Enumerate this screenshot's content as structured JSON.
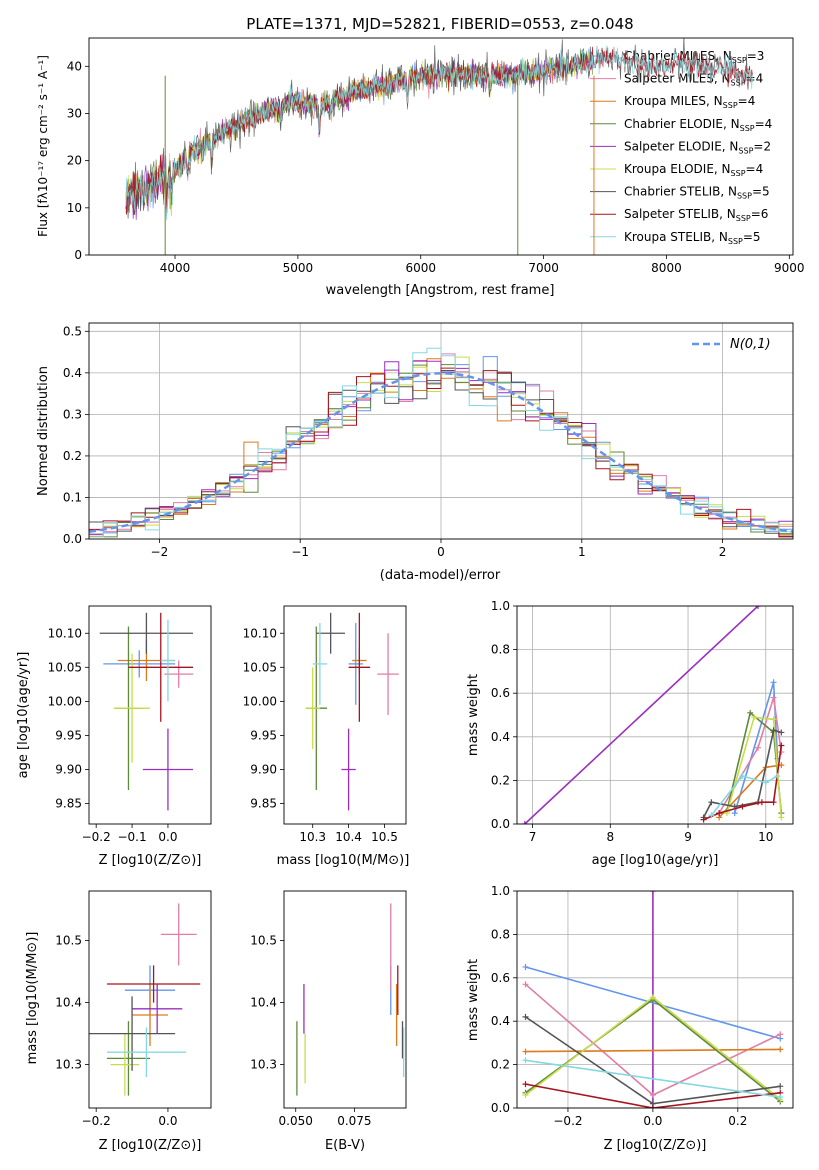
{
  "chart_data": [
    {
      "id": "spectrum",
      "type": "line",
      "title": "PLATE=1371, MJD=52821, FIBERID=0553, z=0.048",
      "xlabel": "wavelength [Angstrom, rest frame]",
      "ylabel": "Flux [fλ10⁻¹⁷ erg cm⁻² s⁻¹ A⁻¹]",
      "xlim": [
        3300,
        9030
      ],
      "ylim": [
        0,
        46
      ],
      "xticks": [
        4000,
        5000,
        6000,
        7000,
        8000,
        9000
      ],
      "yticks": [
        0,
        10,
        20,
        30,
        40
      ],
      "grid": false,
      "legend_position": "top-right",
      "continuum_knots": [
        [
          3600,
          12.5
        ],
        [
          3700,
          13
        ],
        [
          3800,
          15
        ],
        [
          3900,
          16.5
        ],
        [
          4000,
          18
        ],
        [
          4100,
          21
        ],
        [
          4200,
          23
        ],
        [
          4300,
          24
        ],
        [
          4400,
          26
        ],
        [
          4500,
          27.5
        ],
        [
          4600,
          29
        ],
        [
          4700,
          30
        ],
        [
          4800,
          31
        ],
        [
          4900,
          32
        ],
        [
          5000,
          32.5
        ],
        [
          5100,
          32
        ],
        [
          5200,
          31.5
        ],
        [
          5300,
          33
        ],
        [
          5400,
          34
        ],
        [
          5500,
          35
        ],
        [
          5700,
          36
        ],
        [
          5900,
          37.5
        ],
        [
          6100,
          38
        ],
        [
          6300,
          38.5
        ],
        [
          6500,
          38
        ],
        [
          6700,
          38
        ],
        [
          6900,
          38.5
        ],
        [
          7100,
          39.5
        ],
        [
          7300,
          40.5
        ],
        [
          7500,
          42
        ],
        [
          7700,
          41
        ],
        [
          7900,
          40
        ],
        [
          8100,
          40.5
        ],
        [
          8300,
          40
        ],
        [
          8500,
          39
        ],
        [
          8700,
          38
        ]
      ],
      "series": [
        {
          "name": "Chabrier MILES, N_SSP=3",
          "label_main": "Chabrier MILES, N",
          "label_sub": "SSP",
          "label_tail": "=3",
          "color": "#6495ed"
        },
        {
          "name": "Salpeter MILES, N_SSP=4",
          "label_main": "Salpeter MILES, N",
          "label_sub": "SSP",
          "label_tail": "=4",
          "color": "#e27da6"
        },
        {
          "name": "Kroupa MILES, N_SSP=4",
          "label_main": "Kroupa MILES, N",
          "label_sub": "SSP",
          "label_tail": "=4",
          "color": "#dd7a1c"
        },
        {
          "name": "Chabrier ELODIE, N_SSP=4",
          "label_main": "Chabrier ELODIE, N",
          "label_sub": "SSP",
          "label_tail": "=4",
          "color": "#5d8a3a"
        },
        {
          "name": "Salpeter ELODIE, N_SSP=2",
          "label_main": "Salpeter ELODIE, N",
          "label_sub": "SSP",
          "label_tail": "=2",
          "color": "#9a2fbf"
        },
        {
          "name": "Kroupa ELODIE, N_SSP=4",
          "label_main": "Kroupa ELODIE, N",
          "label_sub": "SSP",
          "label_tail": "=4",
          "color": "#c8dc4a"
        },
        {
          "name": "Chabrier STELIB, N_SSP=5",
          "label_main": "Chabrier STELIB, N",
          "label_sub": "SSP",
          "label_tail": "=5",
          "color": "#555555"
        },
        {
          "name": "Salpeter STELIB, N_SSP=6",
          "label_main": "Salpeter STELIB, N",
          "label_sub": "SSP",
          "label_tail": "=6",
          "color": "#a8141e"
        },
        {
          "name": "Kroupa STELIB, N_SSP=5",
          "label_main": "Kroupa STELIB, N",
          "label_sub": "SSP",
          "label_tail": "=5",
          "color": "#84d8e0"
        }
      ]
    },
    {
      "id": "residuals",
      "type": "line",
      "xlabel": "(data-model)/error",
      "ylabel": "Normed distribution",
      "xlim": [
        -2.5,
        2.5
      ],
      "ylim": [
        0,
        0.52
      ],
      "xticks": [
        -2,
        -1,
        0,
        1,
        2
      ],
      "yticks": [
        0.0,
        0.1,
        0.2,
        0.3,
        0.4,
        0.5
      ],
      "grid": true,
      "legend_position": "top-right",
      "reference_curve": {
        "name": "N(0,1)",
        "mean": 0,
        "sigma": 1,
        "color": "#6495ed"
      },
      "bin_edges_range": [
        -2.5,
        2.5
      ],
      "bin_width": 0.1,
      "series_colors": [
        "#6495ed",
        "#e27da6",
        "#dd7a1c",
        "#5d8a3a",
        "#9a2fbf",
        "#c8dc4a",
        "#555555",
        "#a8141e",
        "#84d8e0"
      ]
    },
    {
      "id": "age-vs-Z",
      "type": "scatter",
      "xlabel": "Z [log10(Z/Z⊙)]",
      "ylabel": "age [log10(age/yr)]",
      "xlim": [
        -0.22,
        0.12
      ],
      "ylim": [
        9.82,
        10.14
      ],
      "xticks": [
        -0.2,
        -0.1,
        0.0
      ],
      "yticks": [
        9.85,
        9.9,
        9.95,
        10.0,
        10.05,
        10.1
      ],
      "points": [
        {
          "x": -0.08,
          "y": 10.055,
          "xerr": 0.1,
          "yerr": 0.02,
          "color": "#6495ed"
        },
        {
          "x": 0.03,
          "y": 10.04,
          "xerr": 0.04,
          "yerr": 0.02,
          "color": "#e27da6"
        },
        {
          "x": -0.06,
          "y": 10.06,
          "xerr": 0.08,
          "yerr": 0.03,
          "color": "#dd7a1c"
        },
        {
          "x": -0.11,
          "y": 9.99,
          "xerr": 0.04,
          "yerr": 0.12,
          "color": "#5d8a3a"
        },
        {
          "x": 0.0,
          "y": 9.9,
          "xerr": 0.07,
          "yerr": 0.06,
          "color": "#9a2fbf"
        },
        {
          "x": -0.1,
          "y": 9.99,
          "xerr": 0.05,
          "yerr": 0.08,
          "color": "#c8dc4a"
        },
        {
          "x": -0.06,
          "y": 10.1,
          "xerr": 0.13,
          "yerr": 0.03,
          "color": "#555555"
        },
        {
          "x": -0.02,
          "y": 10.05,
          "xerr": 0.09,
          "yerr": 0.08,
          "color": "#a8141e"
        },
        {
          "x": 0.0,
          "y": 10.06,
          "xerr": 0.02,
          "yerr": 0.06,
          "color": "#84d8e0"
        }
      ]
    },
    {
      "id": "age-vs-mass",
      "type": "scatter",
      "xlabel": "mass [log10(M/M⊙)]",
      "xlim": [
        10.22,
        10.56
      ],
      "ylim": [
        9.82,
        10.14
      ],
      "xticks": [
        10.3,
        10.4,
        10.5
      ],
      "yticks": [
        9.85,
        9.9,
        9.95,
        10.0,
        10.05,
        10.1
      ],
      "points": [
        {
          "x": 10.42,
          "y": 10.055,
          "xerr": 0.02,
          "yerr": 0.06,
          "color": "#6495ed"
        },
        {
          "x": 10.51,
          "y": 10.04,
          "xerr": 0.03,
          "yerr": 0.06,
          "color": "#e27da6"
        },
        {
          "x": 10.43,
          "y": 10.06,
          "xerr": 0.02,
          "yerr": 0.02,
          "color": "#dd7a1c"
        },
        {
          "x": 10.31,
          "y": 9.99,
          "xerr": 0.03,
          "yerr": 0.12,
          "color": "#5d8a3a"
        },
        {
          "x": 10.4,
          "y": 9.9,
          "xerr": 0.02,
          "yerr": 0.06,
          "color": "#9a2fbf"
        },
        {
          "x": 10.3,
          "y": 9.99,
          "xerr": 0.02,
          "yerr": 0.06,
          "color": "#c8dc4a"
        },
        {
          "x": 10.35,
          "y": 10.1,
          "xerr": 0.04,
          "yerr": 0.03,
          "color": "#555555"
        },
        {
          "x": 10.43,
          "y": 10.05,
          "xerr": 0.03,
          "yerr": 0.08,
          "color": "#a8141e"
        },
        {
          "x": 10.32,
          "y": 10.055,
          "xerr": 0.02,
          "yerr": 0.06,
          "color": "#84d8e0"
        }
      ]
    },
    {
      "id": "mass-weight-vs-age",
      "type": "line",
      "xlabel": "age [log10(age/yr)]",
      "ylabel": "mass weight",
      "xlim": [
        6.8,
        10.35
      ],
      "ylim": [
        0,
        1
      ],
      "xticks": [
        7,
        8,
        9,
        10
      ],
      "yticks": [
        0.0,
        0.2,
        0.4,
        0.6,
        0.8,
        1.0
      ],
      "grid": true,
      "series": [
        {
          "color": "#9a2fbf",
          "x": [
            6.9,
            9.9
          ],
          "y": [
            0.0,
            1.0
          ]
        },
        {
          "color": "#6495ed",
          "x": [
            9.6,
            10.1,
            10.15
          ],
          "y": [
            0.05,
            0.65,
            0.3
          ]
        },
        {
          "color": "#e27da6",
          "x": [
            9.4,
            9.9,
            10.1,
            10.2
          ],
          "y": [
            0.05,
            0.35,
            0.58,
            0.33
          ]
        },
        {
          "color": "#dd7a1c",
          "x": [
            9.4,
            10.0,
            10.2
          ],
          "y": [
            0.03,
            0.26,
            0.27
          ]
        },
        {
          "color": "#5d8a3a",
          "x": [
            9.5,
            9.8,
            10.1,
            10.2
          ],
          "y": [
            0.06,
            0.51,
            0.42,
            0.05
          ]
        },
        {
          "color": "#c8dc4a",
          "x": [
            9.5,
            9.85,
            10.1,
            10.2
          ],
          "y": [
            0.05,
            0.49,
            0.48,
            0.03
          ]
        },
        {
          "color": "#555555",
          "x": [
            9.2,
            9.3,
            9.6,
            9.9,
            10.1,
            10.2
          ],
          "y": [
            0.03,
            0.1,
            0.08,
            0.1,
            0.43,
            0.42
          ]
        },
        {
          "color": "#a8141e",
          "x": [
            9.2,
            9.4,
            9.7,
            9.95,
            10.1,
            10.2
          ],
          "y": [
            0.02,
            0.05,
            0.08,
            0.1,
            0.1,
            0.36
          ]
        },
        {
          "color": "#84d8e0",
          "x": [
            9.3,
            9.7,
            10.0,
            10.15
          ],
          "y": [
            0.04,
            0.22,
            0.19,
            0.22
          ]
        }
      ]
    },
    {
      "id": "mass-vs-Z",
      "type": "scatter",
      "xlabel": "Z [log10(Z/Z⊙)]",
      "ylabel": "mass [log10(M/M⊙)]",
      "xlim": [
        -0.22,
        0.12
      ],
      "ylim": [
        10.23,
        10.58
      ],
      "xticks": [
        -0.2,
        0.0
      ],
      "yticks": [
        10.3,
        10.4,
        10.5
      ],
      "points": [
        {
          "x": -0.05,
          "y": 10.42,
          "xerr": 0.07,
          "yerr": 0.04,
          "color": "#6495ed"
        },
        {
          "x": 0.03,
          "y": 10.51,
          "xerr": 0.05,
          "yerr": 0.05,
          "color": "#e27da6"
        },
        {
          "x": -0.05,
          "y": 10.38,
          "xerr": 0.05,
          "yerr": 0.05,
          "color": "#dd7a1c"
        },
        {
          "x": -0.11,
          "y": 10.31,
          "xerr": 0.06,
          "yerr": 0.06,
          "color": "#5d8a3a"
        },
        {
          "x": -0.03,
          "y": 10.39,
          "xerr": 0.07,
          "yerr": 0.04,
          "color": "#9a2fbf"
        },
        {
          "x": -0.12,
          "y": 10.3,
          "xerr": 0.04,
          "yerr": 0.05,
          "color": "#c8dc4a"
        },
        {
          "x": -0.1,
          "y": 10.35,
          "xerr": 0.12,
          "yerr": 0.06,
          "color": "#555555"
        },
        {
          "x": -0.04,
          "y": 10.43,
          "xerr": 0.13,
          "yerr": 0.03,
          "color": "#a8141e"
        },
        {
          "x": -0.06,
          "y": 10.32,
          "xerr": 0.11,
          "yerr": 0.04,
          "color": "#84d8e0"
        }
      ]
    },
    {
      "id": "mass-vs-ebv",
      "type": "scatter",
      "xlabel": "E(B-V)",
      "xlim": [
        0.045,
        0.097
      ],
      "ylim": [
        10.23,
        10.58
      ],
      "xticks": [
        0.05,
        0.075
      ],
      "yticks": [
        10.3,
        10.4,
        10.5
      ],
      "points": [
        {
          "x": 0.0905,
          "y": 10.42,
          "xerr": 0,
          "yerr": 0.04,
          "color": "#6495ed"
        },
        {
          "x": 0.0905,
          "y": 10.49,
          "xerr": 0,
          "yerr": 0.07,
          "color": "#e27da6"
        },
        {
          "x": 0.093,
          "y": 10.38,
          "xerr": 0,
          "yerr": 0.05,
          "color": "#dd7a1c"
        },
        {
          "x": 0.0505,
          "y": 10.31,
          "xerr": 0,
          "yerr": 0.06,
          "color": "#5d8a3a"
        },
        {
          "x": 0.0535,
          "y": 10.39,
          "xerr": 0,
          "yerr": 0.04,
          "color": "#9a2fbf"
        },
        {
          "x": 0.054,
          "y": 10.31,
          "xerr": 0,
          "yerr": 0.04,
          "color": "#c8dc4a"
        },
        {
          "x": 0.0955,
          "y": 10.34,
          "xerr": 0,
          "yerr": 0.03,
          "color": "#555555"
        },
        {
          "x": 0.0935,
          "y": 10.42,
          "xerr": 0,
          "yerr": 0.04,
          "color": "#a8141e"
        },
        {
          "x": 0.096,
          "y": 10.32,
          "xerr": 0,
          "yerr": 0.04,
          "color": "#84d8e0"
        }
      ]
    },
    {
      "id": "mass-weight-vs-Z",
      "type": "line",
      "xlabel": "Z [log10(Z/Z⊙)]",
      "ylabel": "mass weight",
      "xlim": [
        -0.32,
        0.33
      ],
      "ylim": [
        0,
        1
      ],
      "xticks": [
        -0.2,
        0.0,
        0.2
      ],
      "yticks": [
        0.0,
        0.2,
        0.4,
        0.6,
        0.8,
        1.0
      ],
      "grid": true,
      "series": [
        {
          "color": "#9a2fbf",
          "x": [
            0.0,
            0.0
          ],
          "y": [
            0.0,
            1.0
          ]
        },
        {
          "color": "#6495ed",
          "x": [
            -0.3,
            0.3
          ],
          "y": [
            0.65,
            0.32
          ]
        },
        {
          "color": "#e27da6",
          "x": [
            -0.3,
            0.0,
            0.3
          ],
          "y": [
            0.57,
            0.06,
            0.34
          ]
        },
        {
          "color": "#dd7a1c",
          "x": [
            -0.3,
            0.3
          ],
          "y": [
            0.26,
            0.27
          ]
        },
        {
          "color": "#5d8a3a",
          "x": [
            -0.3,
            0.0,
            0.3
          ],
          "y": [
            0.07,
            0.5,
            0.03
          ]
        },
        {
          "color": "#c8dc4a",
          "x": [
            -0.3,
            0.0,
            0.3
          ],
          "y": [
            0.06,
            0.51,
            0.04
          ]
        },
        {
          "color": "#555555",
          "x": [
            -0.3,
            0.0,
            0.3
          ],
          "y": [
            0.42,
            0.02,
            0.1
          ]
        },
        {
          "color": "#a8141e",
          "x": [
            -0.3,
            0.0,
            0.3
          ],
          "y": [
            0.11,
            0.0,
            0.07
          ]
        },
        {
          "color": "#84d8e0",
          "x": [
            -0.3,
            0.3
          ],
          "y": [
            0.22,
            0.05
          ]
        }
      ]
    }
  ]
}
